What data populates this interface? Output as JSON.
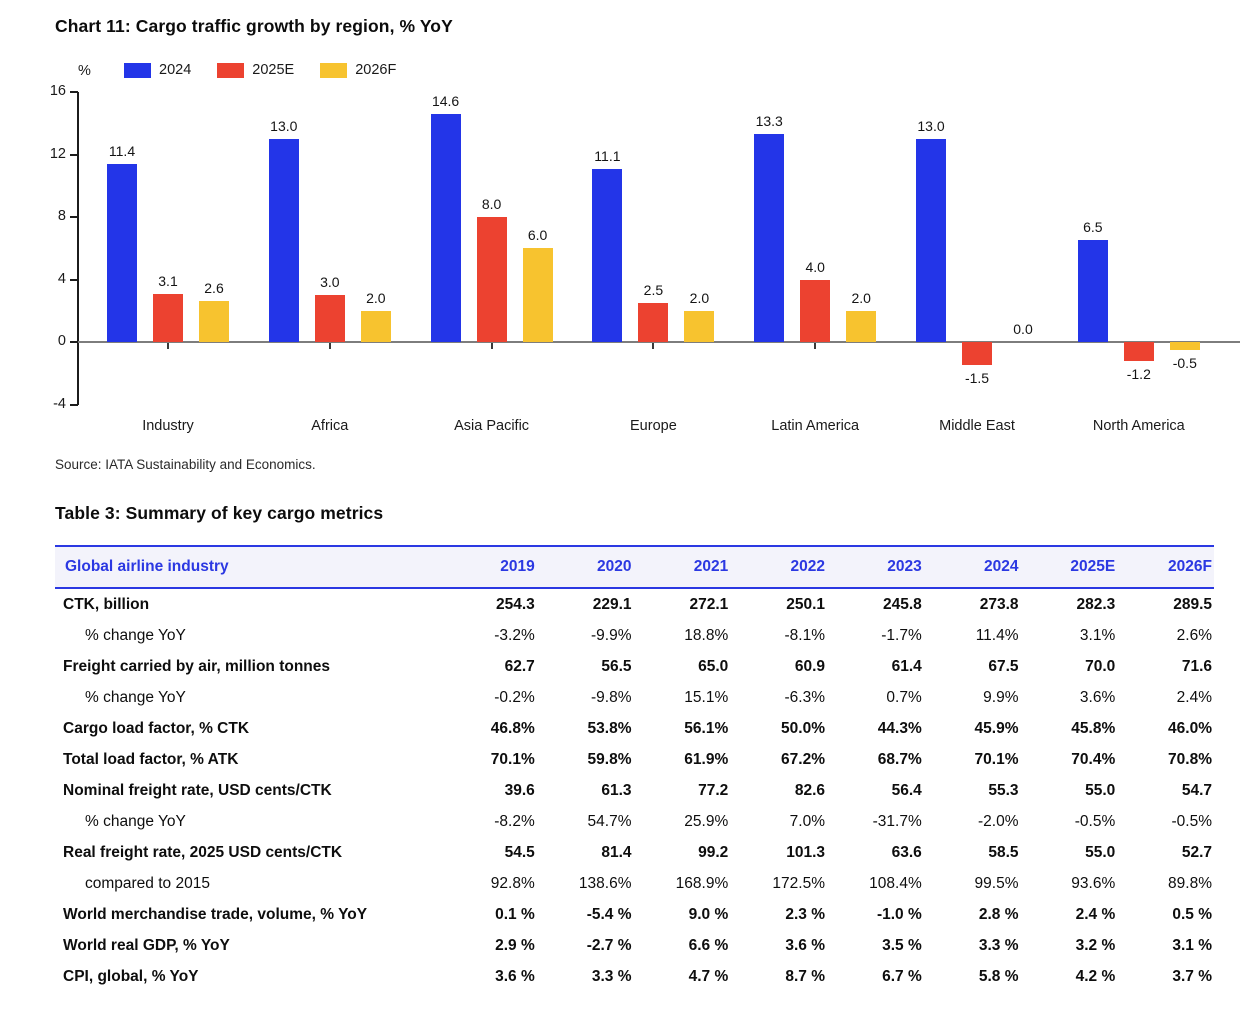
{
  "colors": {
    "bar_blue": "#2335e8",
    "bar_red": "#ec4230",
    "bar_yellow": "#f7c32f",
    "table_accent_blue": "#2b38e2",
    "header_row_bg": "#f3f3fb",
    "x_axis_gray": "#7d7d7d"
  },
  "chart_data": [
    {
      "type": "bar",
      "title": "Chart 11: Cargo traffic growth by region, % YoY",
      "ylabel": "%",
      "xlabel": "",
      "ylim": [
        -4,
        16
      ],
      "yticks": [
        16,
        12,
        8,
        4,
        0,
        -4
      ],
      "grid": false,
      "legend_position": "top",
      "value_labels": true,
      "categories": [
        "Industry",
        "Africa",
        "Asia Pacific",
        "Europe",
        "Latin America",
        "Middle East",
        "North America"
      ],
      "series": [
        {
          "name": "2024",
          "color": "#2335e8",
          "values": [
            11.4,
            13.0,
            14.6,
            11.1,
            13.3,
            13.0,
            6.5
          ]
        },
        {
          "name": "2025E",
          "color": "#ec4230",
          "values": [
            3.1,
            3.0,
            8.0,
            2.5,
            4.0,
            -1.5,
            -1.2
          ]
        },
        {
          "name": "2026F",
          "color": "#f7c32f",
          "values": [
            2.6,
            2.0,
            6.0,
            2.0,
            2.0,
            0.0,
            -0.5
          ]
        }
      ],
      "source": "Source: IATA Sustainability and Economics."
    },
    {
      "type": "table",
      "title": "Table 3: Summary of key cargo metrics",
      "columns": [
        "Global airline industry",
        "2019",
        "2020",
        "2021",
        "2022",
        "2023",
        "2024",
        "2025E",
        "2026F"
      ],
      "rows": [
        {
          "label": "CTK, billion",
          "indent": false,
          "bold": true,
          "values": [
            "254.3",
            "229.1",
            "272.1",
            "250.1",
            "245.8",
            "273.8",
            "282.3",
            "289.5"
          ]
        },
        {
          "label": "% change YoY",
          "indent": true,
          "bold": false,
          "values": [
            "-3.2%",
            "-9.9%",
            "18.8%",
            "-8.1%",
            "-1.7%",
            "11.4%",
            "3.1%",
            "2.6%"
          ]
        },
        {
          "label": "Freight carried by air, million tonnes",
          "indent": false,
          "bold": true,
          "values": [
            "62.7",
            "56.5",
            "65.0",
            "60.9",
            "61.4",
            "67.5",
            "70.0",
            "71.6"
          ]
        },
        {
          "label": "% change YoY",
          "indent": true,
          "bold": false,
          "values": [
            "-0.2%",
            "-9.8%",
            "15.1%",
            "-6.3%",
            "0.7%",
            "9.9%",
            "3.6%",
            "2.4%"
          ]
        },
        {
          "label": "Cargo load factor, % CTK",
          "indent": false,
          "bold": true,
          "values": [
            "46.8%",
            "53.8%",
            "56.1%",
            "50.0%",
            "44.3%",
            "45.9%",
            "45.8%",
            "46.0%"
          ]
        },
        {
          "label": "Total load factor, % ATK",
          "indent": false,
          "bold": true,
          "values": [
            "70.1%",
            "59.8%",
            "61.9%",
            "67.2%",
            "68.7%",
            "70.1%",
            "70.4%",
            "70.8%"
          ]
        },
        {
          "label": "Nominal freight rate, USD cents/CTK",
          "indent": false,
          "bold": true,
          "values": [
            "39.6",
            "61.3",
            "77.2",
            "82.6",
            "56.4",
            "55.3",
            "55.0",
            "54.7"
          ]
        },
        {
          "label": "% change YoY",
          "indent": true,
          "bold": false,
          "values": [
            "-8.2%",
            "54.7%",
            "25.9%",
            "7.0%",
            "-31.7%",
            "-2.0%",
            "-0.5%",
            "-0.5%"
          ]
        },
        {
          "label": "Real freight rate, 2025 USD cents/CTK",
          "indent": false,
          "bold": true,
          "values": [
            "54.5",
            "81.4",
            "99.2",
            "101.3",
            "63.6",
            "58.5",
            "55.0",
            "52.7"
          ]
        },
        {
          "label": "compared to 2015",
          "indent": true,
          "bold": false,
          "values": [
            "92.8%",
            "138.6%",
            "168.9%",
            "172.5%",
            "108.4%",
            "99.5%",
            "93.6%",
            "89.8%"
          ]
        },
        {
          "label": "World merchandise trade, volume, % YoY",
          "indent": false,
          "bold": true,
          "values": [
            "0.1 %",
            "-5.4 %",
            "9.0 %",
            "2.3 %",
            "-1.0 %",
            "2.8 %",
            "2.4 %",
            "0.5 %"
          ]
        },
        {
          "label": "World real GDP, % YoY",
          "indent": false,
          "bold": true,
          "values": [
            "2.9 %",
            "-2.7 %",
            "6.6 %",
            "3.6 %",
            "3.5 %",
            "3.3 %",
            "3.2 %",
            "3.1 %"
          ]
        },
        {
          "label": "CPI, global, % YoY",
          "indent": false,
          "bold": true,
          "values": [
            "3.6 %",
            "3.3 %",
            "4.7 %",
            "8.7 %",
            "6.7 %",
            "5.8 %",
            "4.2 %",
            "3.7 %"
          ]
        }
      ]
    }
  ]
}
